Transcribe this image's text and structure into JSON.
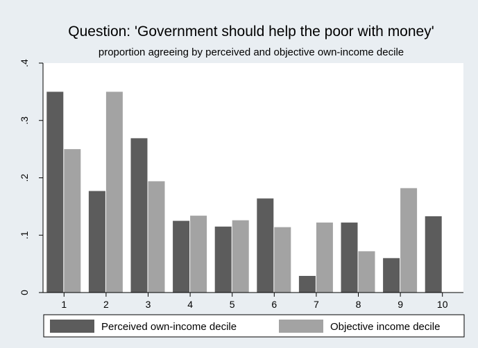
{
  "chart_data": {
    "type": "bar",
    "title": "Question: 'Government should help the poor with money'",
    "subtitle": "proportion agreeing by perceived and objective own-income decile",
    "xlabel": "",
    "ylabel": "",
    "categories": [
      "1",
      "2",
      "3",
      "4",
      "5",
      "6",
      "7",
      "8",
      "9",
      "10"
    ],
    "ylim": [
      0,
      0.4
    ],
    "yticks": [
      0,
      0.1,
      0.2,
      0.3,
      0.4
    ],
    "ytick_labels": [
      "0",
      ".1",
      ".2",
      ".3",
      ".4"
    ],
    "grid": false,
    "legend_position": "bottom",
    "series": [
      {
        "name": "Perceived own-income decile",
        "color": "#5c5c5c",
        "values": [
          0.35,
          0.177,
          0.269,
          0.125,
          0.115,
          0.164,
          0.029,
          0.122,
          0.06,
          0.133
        ]
      },
      {
        "name": "Objective income decile",
        "color": "#a3a3a3",
        "values": [
          0.25,
          0.35,
          0.194,
          0.134,
          0.126,
          0.114,
          0.122,
          0.072,
          0.182,
          null
        ]
      }
    ],
    "colors": {
      "background": "#e9eef2",
      "plot_area": "#ffffff"
    }
  }
}
